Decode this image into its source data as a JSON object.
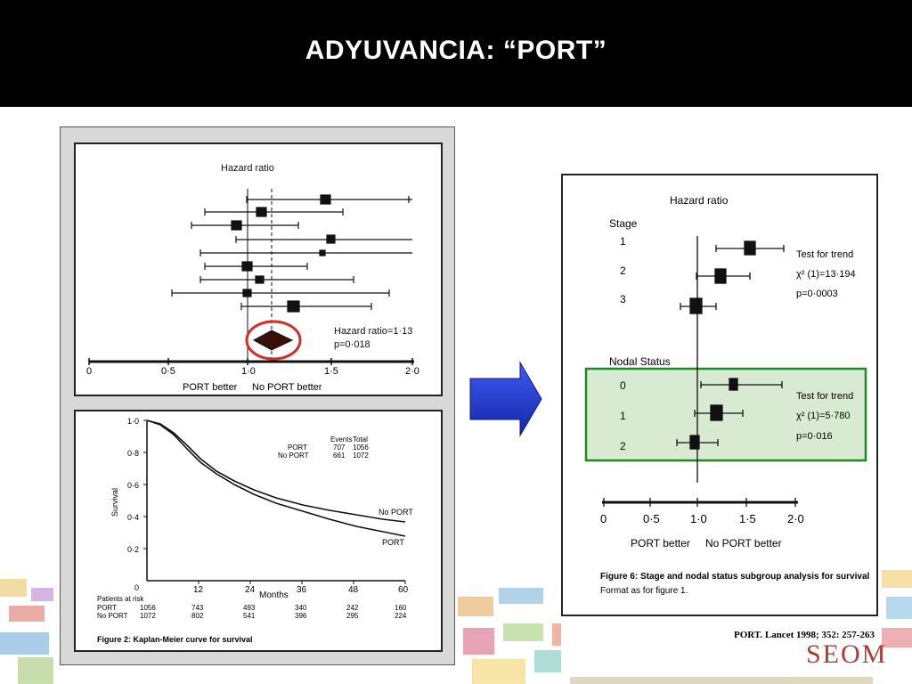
{
  "slide": {
    "title": "ADYUVANCIA: “PORT”",
    "citation": "PORT. Lancet 1998; 352: 257-263",
    "logo": "SEOM"
  },
  "forest_left": {
    "heading": "Hazard ratio",
    "summary_label": "Hazard ratio=1·13",
    "summary_p": "p=0·018",
    "x_ticks": [
      "0",
      "0·5",
      "1·0",
      "1·5",
      "2·0"
    ],
    "left_caption": "PORT better",
    "right_caption": "No PORT better"
  },
  "km": {
    "legend_events": "Events",
    "legend_total": "Total",
    "legend_row1": [
      "PORT",
      "707",
      "1056"
    ],
    "legend_row2": [
      "No PORT",
      "661",
      "1072"
    ],
    "y_label": "Survival",
    "y_ticks": [
      "1·0",
      "0·8",
      "0·6",
      "0·4",
      "0·2",
      "0"
    ],
    "x_ticks": [
      "12",
      "24",
      "36",
      "48",
      "60"
    ],
    "x_label": "Months",
    "curve_label_noport": "No PORT",
    "curve_label_port": "PORT",
    "risk_heading": "Patients at risk",
    "risk_port_label": "PORT",
    "risk_noport_label": "No PORT",
    "risk_port": [
      "1056",
      "743",
      "493",
      "340",
      "242",
      "160"
    ],
    "risk_noport": [
      "1072",
      "802",
      "541",
      "396",
      "295",
      "224"
    ],
    "caption": "Figure 2: Kaplan-Meier curve for survival"
  },
  "forest_right": {
    "heading": "Hazard ratio",
    "stage_heading": "Stage",
    "stage_labels": [
      "1",
      "2",
      "3"
    ],
    "stage_test": "Test for trend",
    "stage_chi": "χ² (1)=13·194",
    "stage_p": "p=0·0003",
    "nodal_heading": "Nodal Status",
    "nodal_labels": [
      "0",
      "1",
      "2"
    ],
    "nodal_test": "Test for trend",
    "nodal_chi": "χ² (1)=5·780",
    "nodal_p": "p=0·016",
    "x_ticks": [
      "0",
      "0·5",
      "1·0",
      "1·5",
      "2·0"
    ],
    "left_caption": "PORT better",
    "right_caption": "No PORT better",
    "caption_line1": "Figure 6: Stage and nodal status subgroup analysis for survival",
    "caption_line2": "Format as for figure 1."
  },
  "colors": {
    "header_bg": "#000000",
    "arrow": "#1f36c8",
    "highlight_circle": "#d0302a",
    "highlight_box": "#1e8a22",
    "logo": "#b23a32"
  }
}
